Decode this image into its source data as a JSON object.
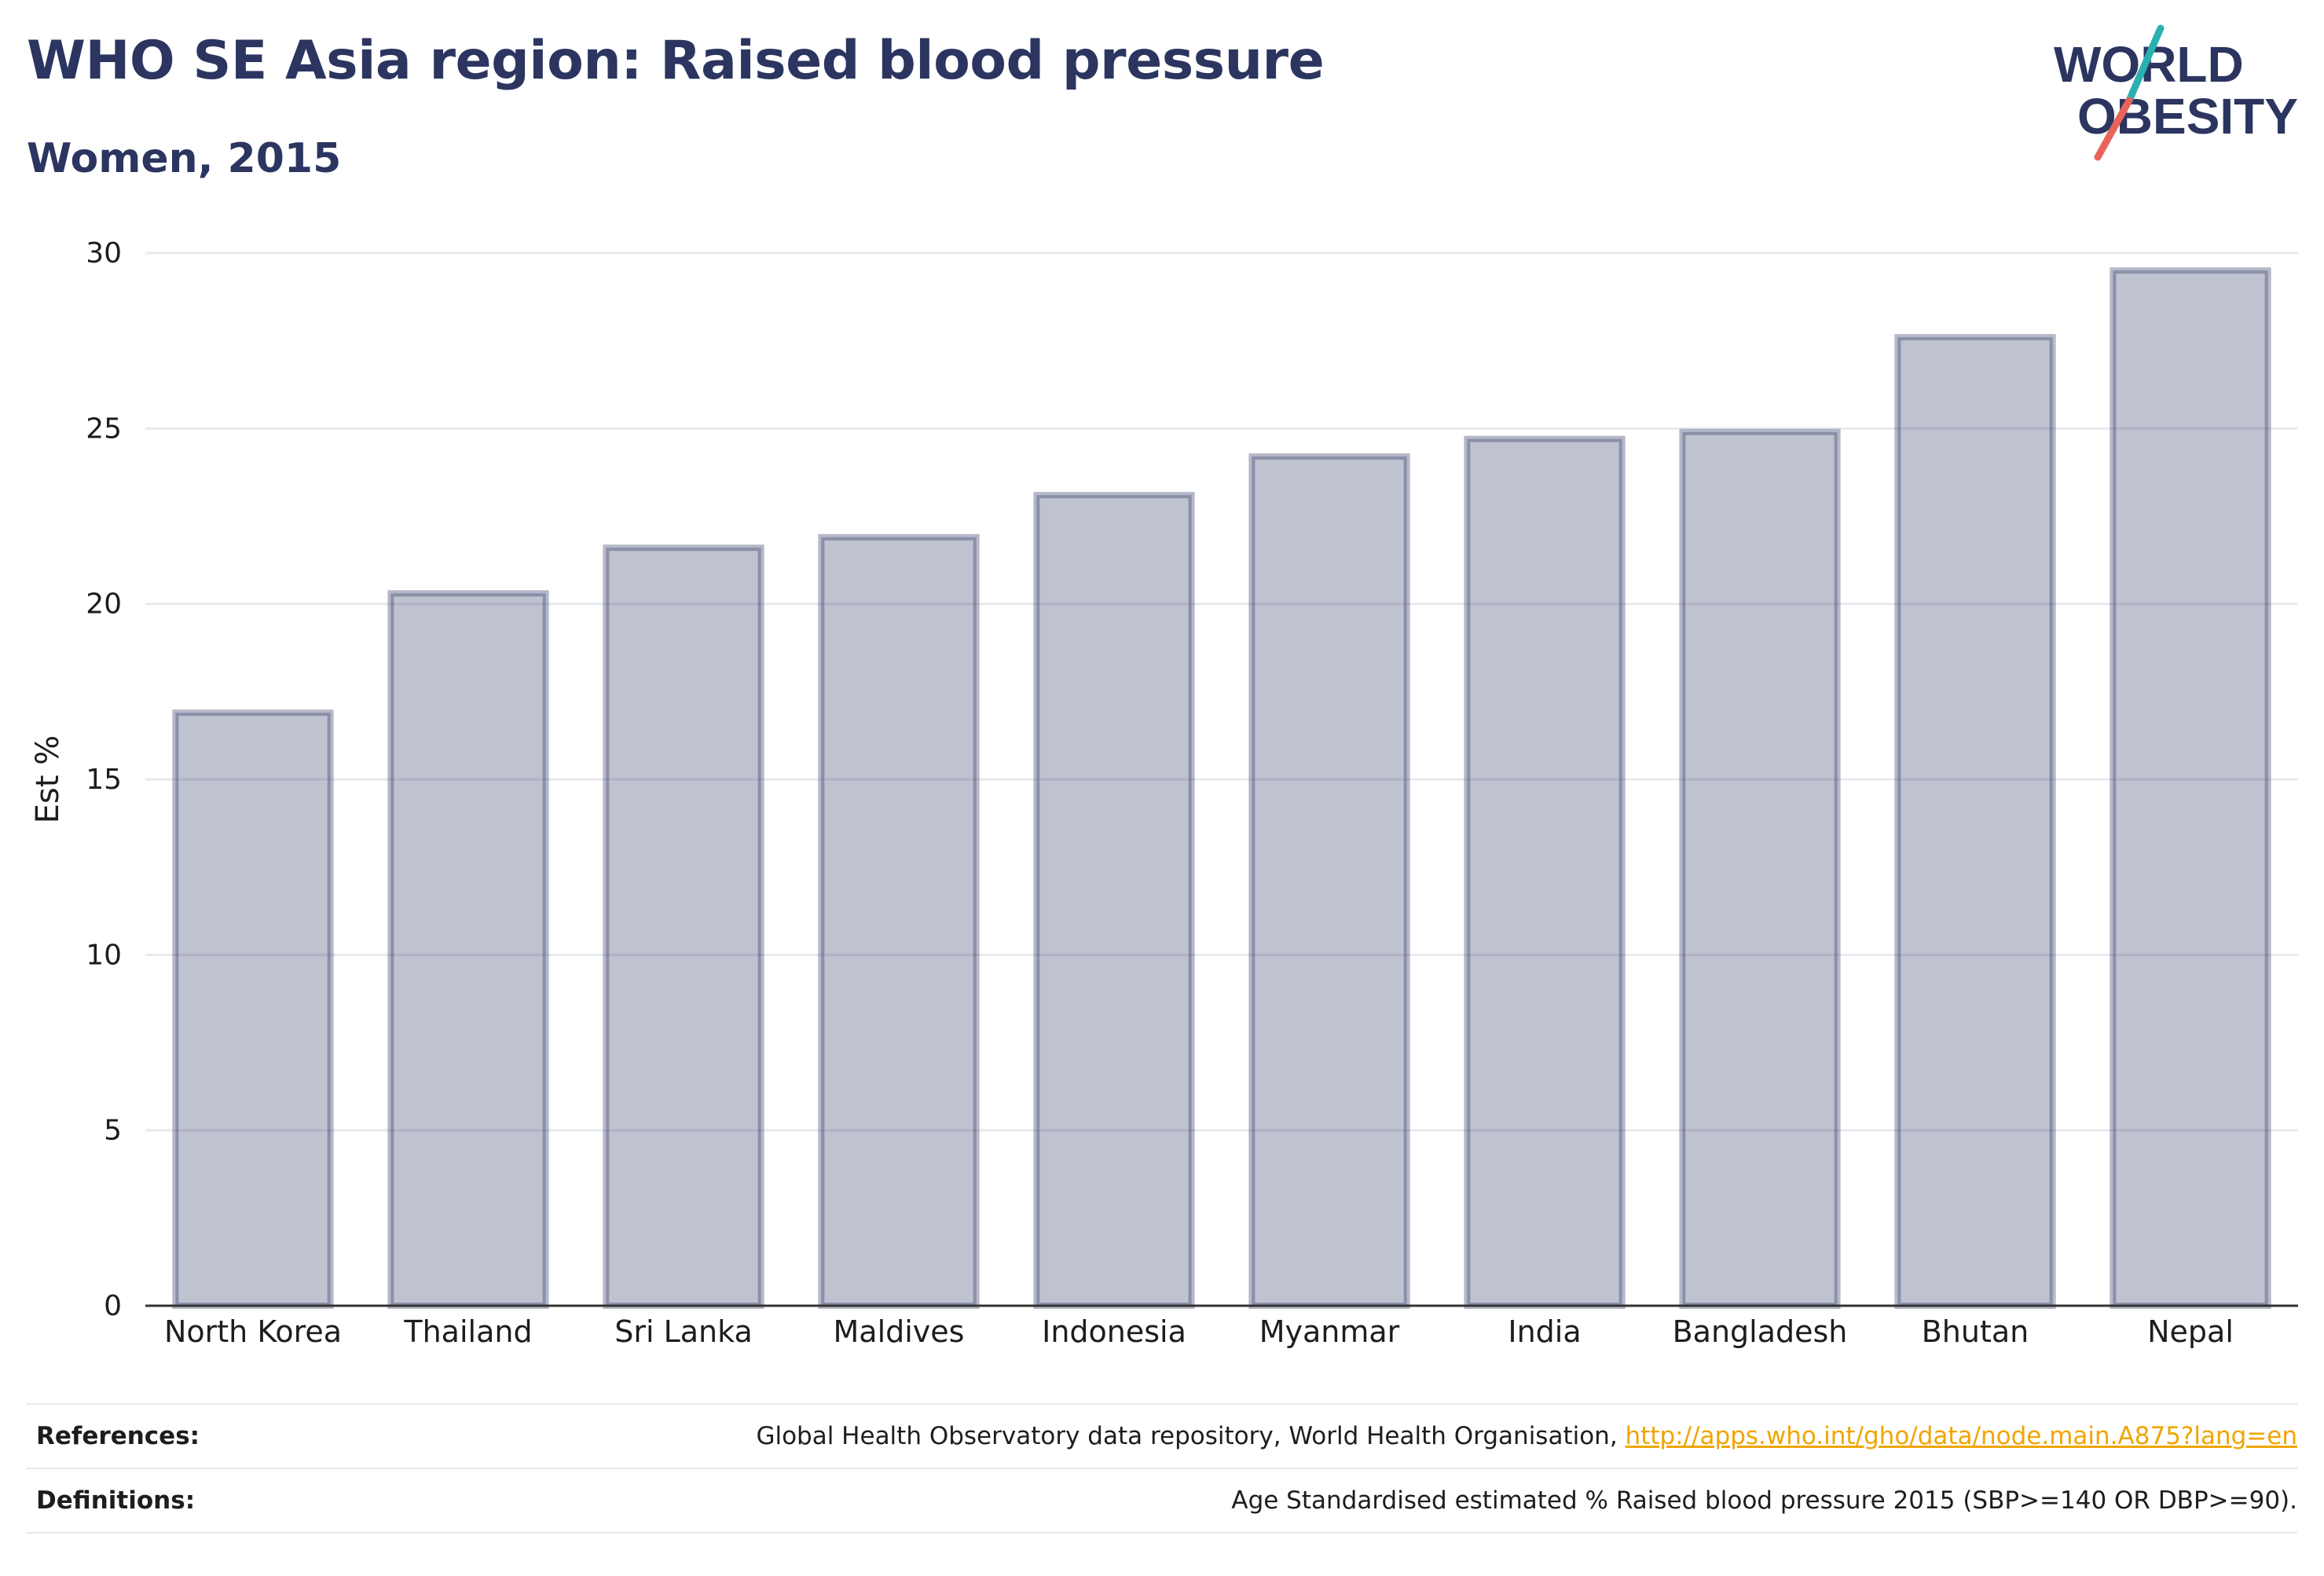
{
  "header": {
    "title": "WHO SE Asia region: Raised blood pressure",
    "subtitle": "Women, 2015"
  },
  "logo": {
    "line1": "WORLD",
    "line2": "OBESITY",
    "slash_top_color": "#2bb0b0",
    "slash_bottom_color": "#e8645a",
    "text_color": "#2b3560"
  },
  "chart_data": {
    "type": "bar",
    "title": "WHO SE Asia region: Raised blood pressure",
    "subtitle": "Women, 2015",
    "xlabel": "",
    "ylabel": "Est %",
    "ylim": [
      0,
      30
    ],
    "yticks": [
      0,
      5,
      10,
      15,
      20,
      25,
      30
    ],
    "grid": true,
    "categories": [
      "North Korea",
      "Thailand",
      "Sri Lanka",
      "Maldives",
      "Indonesia",
      "Myanmar",
      "India",
      "Bangladesh",
      "Bhutan",
      "Nepal"
    ],
    "values": [
      16.9,
      20.3,
      21.6,
      21.9,
      23.1,
      24.2,
      24.7,
      24.9,
      27.6,
      29.5
    ],
    "bar_color": "#2b3560"
  },
  "footer": {
    "references_label": "References:",
    "references_text": "Global Health Observatory data repository, World Health Organisation, ",
    "references_link": "http://apps.who.int/gho/data/node.main.A875?lang=en",
    "definitions_label": "Definitions:",
    "definitions_text": "Age Standardised estimated % Raised blood pressure 2015 (SBP>=140 OR DBP>=90)."
  }
}
